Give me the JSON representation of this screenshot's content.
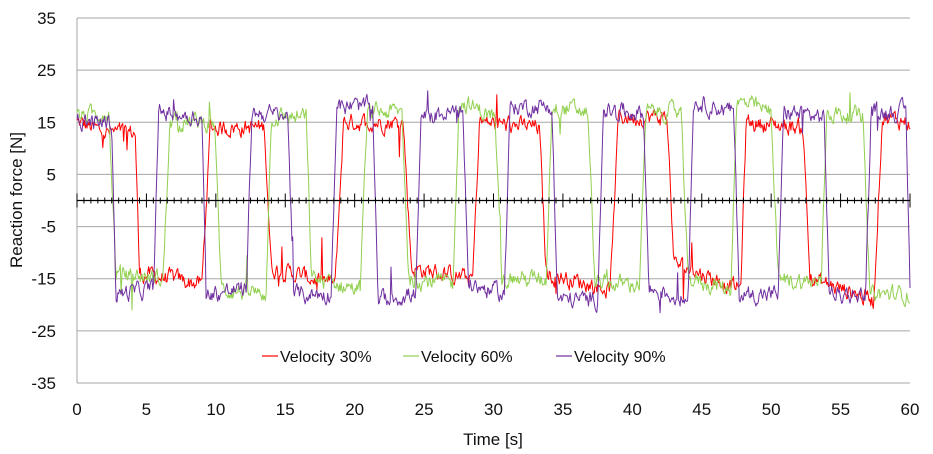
{
  "chart_data": {
    "type": "line",
    "title": "",
    "xlabel": "Time [s]",
    "ylabel": "Reaction force [N]",
    "xlim": [
      0,
      60
    ],
    "ylim": [
      -35,
      35
    ],
    "x_ticks": [
      0,
      5,
      10,
      15,
      20,
      25,
      30,
      35,
      40,
      45,
      50,
      55,
      60
    ],
    "y_ticks": [
      35,
      25,
      15,
      5,
      -5,
      -15,
      -25,
      -35
    ],
    "grid": "horizontal",
    "legend_position": "bottom-center",
    "series": [
      {
        "name": "Velocity 30%",
        "color": "#ff0000",
        "levels": [
          [
            0,
            15
          ],
          [
            2.0,
            13
          ],
          [
            4.2,
            13
          ],
          [
            4.5,
            -14
          ],
          [
            9.0,
            -16
          ],
          [
            9.6,
            14
          ],
          [
            13.5,
            14
          ],
          [
            14.0,
            -13
          ],
          [
            18.6,
            -16
          ],
          [
            19.2,
            15
          ],
          [
            23.5,
            15
          ],
          [
            24.1,
            -13
          ],
          [
            28.5,
            -15
          ],
          [
            29.0,
            15
          ],
          [
            33.3,
            14
          ],
          [
            33.8,
            -14
          ],
          [
            38.4,
            -17
          ],
          [
            39.0,
            16
          ],
          [
            42.5,
            16
          ],
          [
            43.0,
            -12
          ],
          [
            47.8,
            -17
          ],
          [
            48.2,
            15
          ],
          [
            52.3,
            14
          ],
          [
            52.8,
            -15
          ],
          [
            57.4,
            -19
          ],
          [
            58.0,
            16
          ],
          [
            60,
            15
          ]
        ]
      },
      {
        "name": "Velocity 60%",
        "color": "#92d050",
        "levels": [
          [
            0,
            16
          ],
          [
            2.3,
            17
          ],
          [
            2.8,
            -14
          ],
          [
            6.2,
            -15
          ],
          [
            6.7,
            15
          ],
          [
            9.9,
            15
          ],
          [
            10.4,
            -17
          ],
          [
            13.6,
            -18
          ],
          [
            14.0,
            16
          ],
          [
            16.5,
            16
          ],
          [
            16.9,
            -15
          ],
          [
            20.4,
            -17
          ],
          [
            20.9,
            17
          ],
          [
            23.4,
            17
          ],
          [
            23.9,
            -15
          ],
          [
            27.1,
            -16
          ],
          [
            27.5,
            19
          ],
          [
            30.1,
            16
          ],
          [
            30.6,
            -15
          ],
          [
            33.8,
            -15
          ],
          [
            34.2,
            18
          ],
          [
            36.8,
            17
          ],
          [
            37.3,
            -16
          ],
          [
            40.5,
            -16
          ],
          [
            41.0,
            17
          ],
          [
            43.5,
            17
          ],
          [
            44.0,
            -15
          ],
          [
            47.1,
            -17
          ],
          [
            47.5,
            19
          ],
          [
            50.0,
            17
          ],
          [
            50.5,
            -15
          ],
          [
            53.6,
            -16
          ],
          [
            54.0,
            17
          ],
          [
            56.6,
            16
          ],
          [
            57.1,
            -18
          ],
          [
            60,
            -18
          ]
        ]
      },
      {
        "name": "Velocity 90%",
        "color": "#7030a0",
        "levels": [
          [
            0,
            15
          ],
          [
            2.5,
            15
          ],
          [
            2.8,
            -18
          ],
          [
            5.5,
            -17
          ],
          [
            5.9,
            17
          ],
          [
            9.0,
            16
          ],
          [
            9.3,
            -18
          ],
          [
            12.2,
            -17
          ],
          [
            12.6,
            17
          ],
          [
            15.2,
            16
          ],
          [
            15.6,
            -18
          ],
          [
            18.3,
            -18
          ],
          [
            18.7,
            18
          ],
          [
            21.3,
            18
          ],
          [
            21.7,
            -19
          ],
          [
            24.4,
            -18
          ],
          [
            24.8,
            16
          ],
          [
            27.8,
            17
          ],
          [
            28.2,
            -16
          ],
          [
            30.8,
            -18
          ],
          [
            31.2,
            18
          ],
          [
            34.2,
            18
          ],
          [
            34.6,
            -19
          ],
          [
            37.5,
            -19
          ],
          [
            37.9,
            17
          ],
          [
            40.8,
            17
          ],
          [
            41.2,
            -17
          ],
          [
            44.0,
            -19
          ],
          [
            44.4,
            19
          ],
          [
            47.3,
            17
          ],
          [
            47.7,
            -18
          ],
          [
            50.5,
            -18
          ],
          [
            50.9,
            17
          ],
          [
            53.8,
            16
          ],
          [
            54.2,
            -18
          ],
          [
            56.8,
            -18
          ],
          [
            57.2,
            17
          ],
          [
            59.7,
            17
          ],
          [
            60,
            -16
          ]
        ]
      }
    ]
  }
}
